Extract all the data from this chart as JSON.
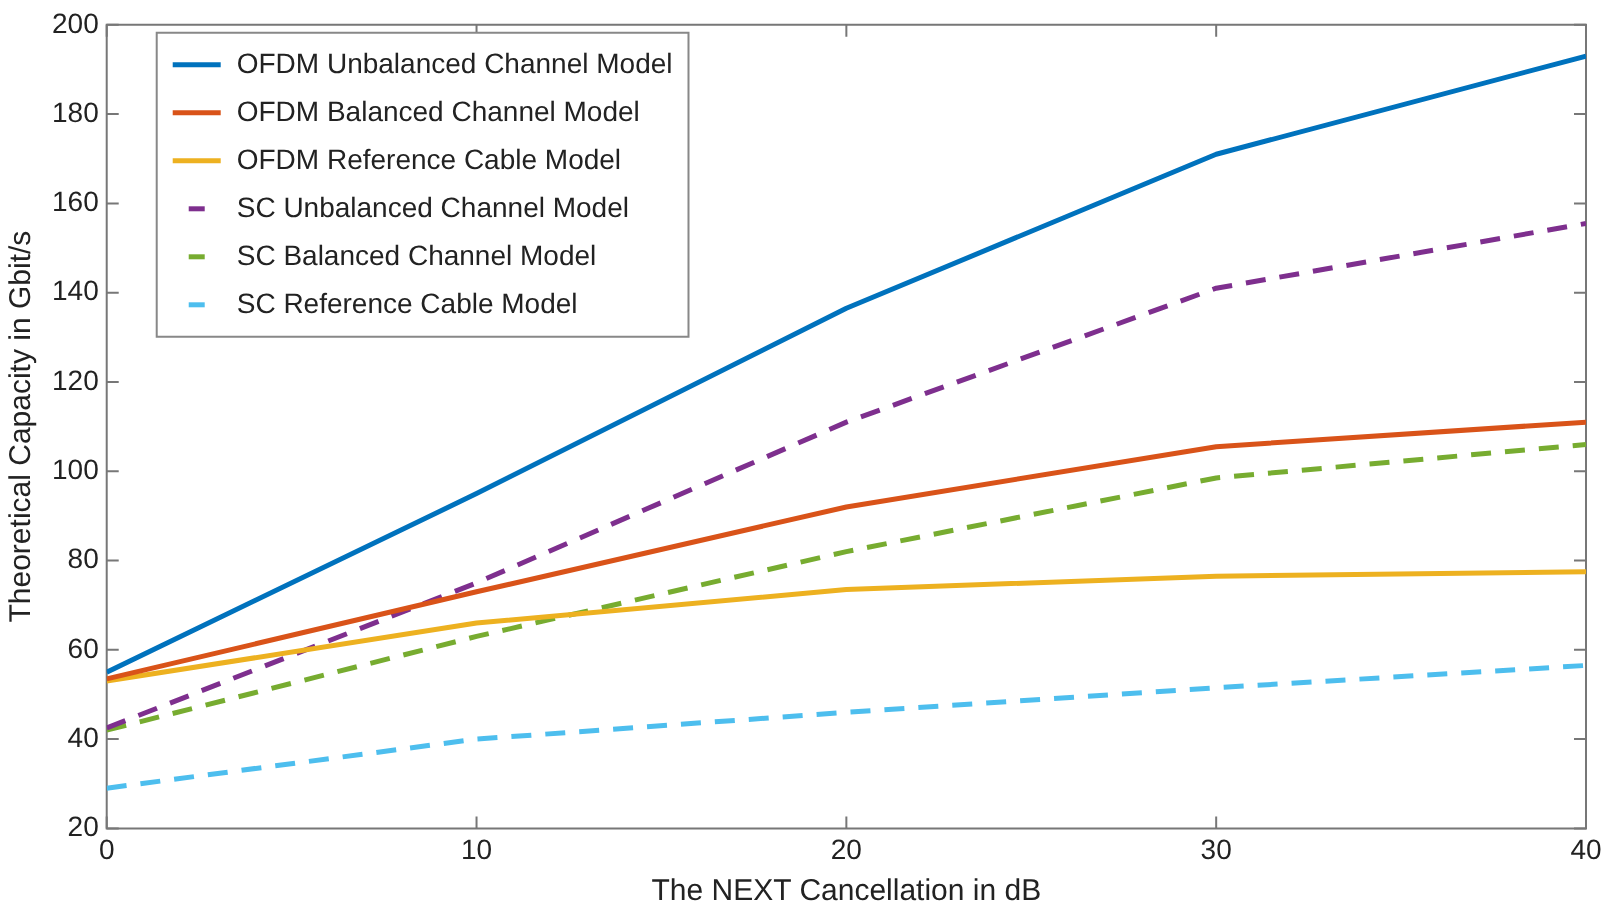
{
  "chart_data": {
    "type": "line",
    "xlabel": "The NEXT Cancellation in dB",
    "ylabel": "Theoretical Capacity in Gbit/s",
    "x": [
      0,
      10,
      20,
      30,
      40
    ],
    "xlim": [
      0,
      40
    ],
    "xticks": [
      0,
      10,
      20,
      30,
      40
    ],
    "ylim": [
      20,
      200
    ],
    "yticks": [
      20,
      40,
      60,
      80,
      100,
      120,
      140,
      160,
      180,
      200
    ],
    "grid": false,
    "legend": "top left",
    "marker": "none",
    "series": [
      {
        "name": "OFDM Unbalanced Channel Model",
        "color": "#0072bd",
        "line_style": "solid",
        "values": [
          55,
          95,
          136.5,
          171,
          193
        ]
      },
      {
        "name": "OFDM Balanced Channel Model",
        "color": "#d95319",
        "line_style": "solid",
        "values": [
          53.5,
          73,
          92,
          105.5,
          111
        ]
      },
      {
        "name": "OFDM Reference Cable Model",
        "color": "#edb120",
        "line_style": "solid",
        "values": [
          53,
          66,
          73.5,
          76.5,
          77.5
        ]
      },
      {
        "name": "SC Unbalanced Channel Model",
        "color": "#7e2f8e",
        "line_style": "dashed",
        "values": [
          42.5,
          75,
          111,
          141,
          155.5
        ]
      },
      {
        "name": "SC Balanced Channel Model",
        "color": "#77ac30",
        "line_style": "dashed",
        "values": [
          42,
          63,
          82,
          98.5,
          106
        ]
      },
      {
        "name": "SC Reference Cable Model",
        "color": "#4dbeee",
        "line_style": "dashed",
        "values": [
          29,
          40,
          46,
          51.5,
          56.5
        ]
      }
    ]
  }
}
